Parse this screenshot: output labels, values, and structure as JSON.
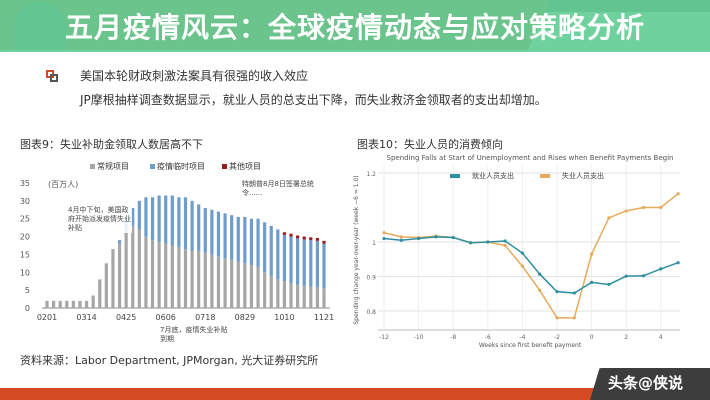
{
  "header": {
    "accent": "#d44a22"
  },
  "bullet": {
    "heading": "美国本轮财政刺激法案具有很强的收入效应",
    "text": "JP摩根抽样调查数据显示，就业人员的总支出下降，而失业救济金领取者的支出却增加。"
  },
  "banner": {
    "title": "五月疫情风云：全球疫情动态与应对策略分析"
  },
  "source": "资料来源：Labor Department, JPMorgan, 光大证券研究所",
  "watermark": "头条@侠说",
  "chart_data": [
    {
      "type": "bar",
      "stacked": true,
      "figure_title": "图表9：失业补助金领取人数居高不下",
      "unit": "(百万人)",
      "annotations": [
        "4月中下旬，美国政府开始派发疫情失业补贴",
        "特朗普8月8日签署总统令......",
        "7月底，疫情失业补贴到期"
      ],
      "ylim": [
        0,
        35
      ],
      "yticks": [
        0,
        5,
        10,
        15,
        20,
        25,
        30,
        35
      ],
      "tick_labels": [
        "0201",
        "0314",
        "0425",
        "0606",
        "0718",
        "0829",
        "1010",
        "1121"
      ],
      "series": [
        {
          "name": "常规项目",
          "color": "#a6a6a6",
          "values": [
            2,
            2,
            2,
            2,
            2,
            2,
            2,
            3.5,
            8,
            12.5,
            16.5,
            18,
            22,
            23,
            22,
            20,
            19,
            18.5,
            18,
            17.5,
            17,
            16.5,
            16,
            16,
            15.5,
            15,
            14.5,
            14,
            13.5,
            13,
            12.5,
            12,
            11.5,
            10,
            9,
            8,
            7.5,
            7,
            6.5,
            6.2,
            6,
            5.8,
            5.5
          ]
        },
        {
          "name": "疫情临时项目",
          "color": "#6e9ccc",
          "values": [
            0,
            0,
            0,
            0,
            0,
            0,
            0,
            0,
            0,
            0,
            0,
            1,
            3,
            5,
            8,
            11,
            12,
            13,
            13.5,
            14,
            14,
            14.5,
            14,
            13,
            12.5,
            12.5,
            12.5,
            12.5,
            12.5,
            12.5,
            13,
            13,
            13.5,
            14,
            14,
            14,
            13,
            13,
            13,
            13,
            13,
            13,
            12.5
          ]
        },
        {
          "name": "其他项目",
          "color": "#9b1b1b",
          "values": [
            0,
            0,
            0,
            0,
            0,
            0,
            0,
            0,
            0,
            0,
            0,
            0,
            0,
            0,
            0,
            0,
            0,
            0,
            0,
            0,
            0,
            0,
            0,
            0,
            0,
            0,
            0,
            0,
            0,
            0,
            0,
            0,
            0,
            0,
            0,
            0,
            0.7,
            0.8,
            0.8,
            0.8,
            0.8,
            0.8,
            0.8
          ]
        }
      ]
    },
    {
      "type": "line",
      "figure_title": "图表10：失业人员的消费倾向",
      "title": "Spending Falls at Start of Unemployment and Rises when Benefit Payments Begin",
      "xlabel": "Weeks since first benefit payment",
      "ylabel": "Spending change year-over-year (week −6 = 1.0)",
      "xlim": [
        -12,
        5
      ],
      "ylim": [
        0.77,
        1.2
      ],
      "xticks": [
        -12,
        -10,
        -8,
        -6,
        -4,
        -2,
        0,
        2,
        4
      ],
      "yticks": [
        0.8,
        0.9,
        1,
        1.2
      ],
      "x": [
        -12,
        -11,
        -10,
        -9,
        -8,
        -7,
        -6,
        -5,
        -4,
        -3,
        -2,
        -1,
        0,
        1,
        2,
        3,
        4,
        5
      ],
      "series": [
        {
          "name": "就业人员支出",
          "color": "#2e8fa0",
          "values": [
            1.01,
            1.005,
            1.01,
            1.015,
            1.013,
            0.998,
            1.0,
            1.003,
            0.968,
            0.907,
            0.856,
            0.852,
            0.883,
            0.877,
            0.901,
            0.902,
            0.922,
            0.94
          ]
        },
        {
          "name": "失业人员支出",
          "color": "#e8a95a",
          "values": [
            1.027,
            1.015,
            1.013,
            1.017,
            1.013,
            0.998,
            1.0,
            0.99,
            0.93,
            0.86,
            0.78,
            0.78,
            0.965,
            1.07,
            1.09,
            1.1,
            1.1,
            1.14
          ]
        }
      ]
    }
  ]
}
